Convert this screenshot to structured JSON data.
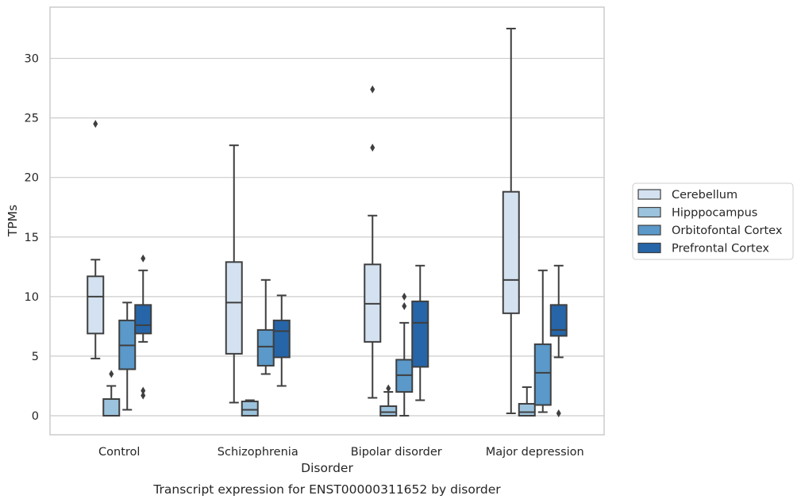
{
  "chart_data": {
    "type": "box",
    "title": "",
    "caption": "Transcript expression for ENST00000311652 by disorder",
    "xlabel": "Disorder",
    "ylabel": "TPMs",
    "ylim": [
      -1.6,
      34.3
    ],
    "yticks": [
      0,
      5,
      10,
      15,
      20,
      25,
      30
    ],
    "grid": true,
    "legend_position": "right",
    "categories": [
      "Control",
      "Schizophrenia",
      "Bipolar disorder",
      "Major depression"
    ],
    "series": [
      {
        "name": "Cerebellum",
        "color": "#d3e1f0",
        "boxes": [
          {
            "whislo": 4.8,
            "q1": 6.9,
            "med": 10.0,
            "q3": 11.7,
            "whishi": 13.1,
            "fliers": [
              24.5
            ]
          },
          {
            "whislo": 1.1,
            "q1": 5.2,
            "med": 9.5,
            "q3": 12.9,
            "whishi": 22.7,
            "fliers": []
          },
          {
            "whislo": 1.5,
            "q1": 6.2,
            "med": 9.4,
            "q3": 12.7,
            "whishi": 16.8,
            "fliers": [
              22.5,
              27.4
            ]
          },
          {
            "whislo": 0.2,
            "q1": 8.6,
            "med": 11.4,
            "q3": 18.8,
            "whishi": 32.5,
            "fliers": []
          }
        ]
      },
      {
        "name": "Hipppocampus",
        "color": "#9cc3dd",
        "boxes": [
          {
            "whislo": 0.0,
            "q1": 0.0,
            "med": 0.0,
            "q3": 1.4,
            "whishi": 2.5,
            "fliers": [
              3.5
            ]
          },
          {
            "whislo": 0.0,
            "q1": 0.0,
            "med": 0.5,
            "q3": 1.2,
            "whishi": 1.3,
            "fliers": []
          },
          {
            "whislo": 0.0,
            "q1": 0.0,
            "med": 0.3,
            "q3": 0.8,
            "whishi": 2.0,
            "fliers": [
              2.3
            ]
          },
          {
            "whislo": 0.0,
            "q1": 0.0,
            "med": 0.3,
            "q3": 1.0,
            "whishi": 2.4,
            "fliers": []
          }
        ]
      },
      {
        "name": "Orbitofontal Cortex",
        "color": "#5a99c9",
        "boxes": [
          {
            "whislo": 0.5,
            "q1": 3.9,
            "med": 5.9,
            "q3": 8.0,
            "whishi": 9.5,
            "fliers": []
          },
          {
            "whislo": 3.5,
            "q1": 4.2,
            "med": 5.8,
            "q3": 7.2,
            "whishi": 11.4,
            "fliers": []
          },
          {
            "whislo": 0.0,
            "q1": 2.0,
            "med": 3.4,
            "q3": 4.7,
            "whishi": 7.8,
            "fliers": [
              9.2,
              10.0
            ]
          },
          {
            "whislo": 0.3,
            "q1": 0.9,
            "med": 3.6,
            "q3": 6.0,
            "whishi": 12.2,
            "fliers": []
          }
        ]
      },
      {
        "name": "Prefrontal Cortex",
        "color": "#2665a8",
        "boxes": [
          {
            "whislo": 6.2,
            "q1": 6.9,
            "med": 7.6,
            "q3": 9.3,
            "whishi": 12.2,
            "fliers": [
              1.7,
              2.1,
              13.2
            ]
          },
          {
            "whislo": 2.5,
            "q1": 4.9,
            "med": 7.1,
            "q3": 8.0,
            "whishi": 10.1,
            "fliers": []
          },
          {
            "whislo": 1.3,
            "q1": 4.1,
            "med": 7.8,
            "q3": 9.6,
            "whishi": 12.6,
            "fliers": []
          },
          {
            "whislo": 4.9,
            "q1": 6.7,
            "med": 7.2,
            "q3": 9.3,
            "whishi": 12.6,
            "fliers": [
              0.2
            ]
          }
        ]
      }
    ]
  }
}
